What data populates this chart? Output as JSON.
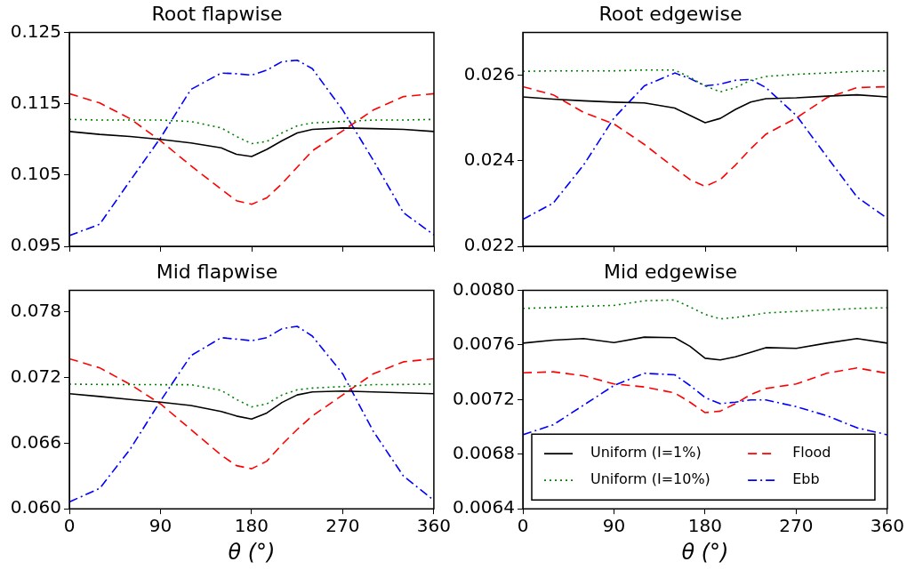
{
  "chart_data": [
    {
      "type": "line",
      "title": "Root flapwise",
      "x": [
        0,
        30,
        60,
        90,
        120,
        150,
        165,
        180,
        195,
        210,
        225,
        240,
        270,
        300,
        330,
        360
      ],
      "xlim": [
        0,
        360
      ],
      "xticks": [
        0,
        90,
        180,
        270,
        360
      ],
      "ylim": [
        0.095,
        0.125
      ],
      "yticks": [
        0.095,
        0.105,
        0.115,
        0.125
      ],
      "tick_labels": "y",
      "marker": "none",
      "series": [
        {
          "color": "#000000",
          "line_style": "solid",
          "values": [
            0.1111,
            0.1107,
            0.1104,
            0.11,
            0.1095,
            0.1088,
            0.1079,
            0.1076,
            0.1086,
            0.1098,
            0.1109,
            0.1114,
            0.1116,
            0.1115,
            0.1114,
            0.1111
          ]
        },
        {
          "color": "#008000",
          "line_style": "dotted",
          "values": [
            0.1128,
            0.1127,
            0.1127,
            0.1127,
            0.1125,
            0.1116,
            0.1104,
            0.1094,
            0.1097,
            0.1109,
            0.1119,
            0.1123,
            0.1125,
            0.1127,
            0.1127,
            0.1128
          ]
        },
        {
          "color": "#ff0000",
          "line_style": "dashed",
          "values": [
            0.1164,
            0.1151,
            0.1129,
            0.1098,
            0.1063,
            0.103,
            0.1014,
            0.1009,
            0.1018,
            0.1038,
            0.1061,
            0.1084,
            0.1112,
            0.1141,
            0.116,
            0.1164
          ]
        },
        {
          "color": "#0000ff",
          "line_style": "dashdot",
          "values": [
            0.0965,
            0.0981,
            0.1042,
            0.1102,
            0.117,
            0.1193,
            0.1192,
            0.119,
            0.1197,
            0.1209,
            0.1211,
            0.1199,
            0.1141,
            0.1071,
            0.0997,
            0.0966
          ]
        }
      ]
    },
    {
      "type": "line",
      "title": "Root edgewise",
      "x": [
        0,
        30,
        60,
        90,
        120,
        150,
        165,
        180,
        195,
        210,
        225,
        240,
        270,
        300,
        330,
        360
      ],
      "xlim": [
        0,
        360
      ],
      "xticks": [
        0,
        90,
        180,
        270,
        360
      ],
      "ylim": [
        0.022,
        0.027
      ],
      "yticks": [
        0.022,
        0.024,
        0.026
      ],
      "tick_labels": "y",
      "marker": "none",
      "series": [
        {
          "color": "#000000",
          "line_style": "solid",
          "values": [
            0.02549,
            0.02544,
            0.0254,
            0.02537,
            0.02535,
            0.02523,
            0.02506,
            0.02489,
            0.02499,
            0.0252,
            0.02537,
            0.02545,
            0.02547,
            0.02551,
            0.02554,
            0.02549
          ]
        },
        {
          "color": "#008000",
          "line_style": "dotted",
          "values": [
            0.02609,
            0.0261,
            0.0261,
            0.0261,
            0.02612,
            0.02612,
            0.02595,
            0.02575,
            0.02561,
            0.02571,
            0.02588,
            0.02597,
            0.02602,
            0.02605,
            0.02609,
            0.0261
          ]
        },
        {
          "color": "#ff0000",
          "line_style": "dashed",
          "values": [
            0.02573,
            0.02554,
            0.02513,
            0.02486,
            0.02438,
            0.02383,
            0.02356,
            0.0234,
            0.02356,
            0.0239,
            0.02428,
            0.02462,
            0.025,
            0.02547,
            0.02571,
            0.02573
          ]
        },
        {
          "color": "#0000ff",
          "line_style": "dashdot",
          "values": [
            0.02263,
            0.02301,
            0.0239,
            0.025,
            0.02575,
            0.02605,
            0.02592,
            0.02575,
            0.02579,
            0.02588,
            0.0259,
            0.02571,
            0.02506,
            0.0241,
            0.02315,
            0.02265
          ]
        }
      ]
    },
    {
      "type": "line",
      "title": "Mid flapwise",
      "xlabel": "θ (°)",
      "x": [
        0,
        30,
        60,
        90,
        120,
        150,
        165,
        180,
        195,
        210,
        225,
        240,
        270,
        300,
        330,
        360
      ],
      "xlim": [
        0,
        360
      ],
      "xticks": [
        0,
        90,
        180,
        270,
        360
      ],
      "ylim": [
        0.06,
        0.08
      ],
      "yticks": [
        {
          "value": 0.06,
          "label": "0.060"
        },
        0.066,
        0.072,
        0.078
      ],
      "marker": "none",
      "series": [
        {
          "color": "#000000",
          "line_style": "solid",
          "values": [
            0.07053,
            0.07028,
            0.07001,
            0.06976,
            0.06946,
            0.06891,
            0.06849,
            0.06822,
            0.06877,
            0.06973,
            0.07042,
            0.0707,
            0.07078,
            0.0707,
            0.07061,
            0.07053
          ]
        },
        {
          "color": "#008000",
          "line_style": "dotted",
          "values": [
            0.07141,
            0.07138,
            0.07137,
            0.07136,
            0.07136,
            0.07084,
            0.07001,
            0.06932,
            0.0696,
            0.07042,
            0.07089,
            0.07105,
            0.07119,
            0.07136,
            0.07138,
            0.07141
          ]
        },
        {
          "color": "#ff0000",
          "line_style": "dashed",
          "values": [
            0.07373,
            0.0729,
            0.07139,
            0.0696,
            0.06726,
            0.06491,
            0.06395,
            0.06367,
            0.06436,
            0.06588,
            0.06726,
            0.0685,
            0.07042,
            0.07235,
            0.07345,
            0.07373
          ]
        },
        {
          "color": "#0000ff",
          "line_style": "dashdot",
          "values": [
            0.06063,
            0.06187,
            0.06545,
            0.06987,
            0.07401,
            0.07566,
            0.07553,
            0.07538,
            0.07566,
            0.07648,
            0.0767,
            0.0758,
            0.07235,
            0.06712,
            0.06299,
            0.06077
          ]
        }
      ]
    },
    {
      "type": "line",
      "title": "Mid edgewise",
      "xlabel": "θ (°)",
      "x": [
        0,
        30,
        60,
        90,
        120,
        150,
        165,
        180,
        195,
        210,
        225,
        240,
        270,
        300,
        330,
        360
      ],
      "xlim": [
        0,
        360
      ],
      "xticks": [
        0,
        90,
        180,
        270,
        360
      ],
      "ylim": [
        0.0064,
        0.008
      ],
      "yticks": [
        0.0064,
        0.0068,
        0.0072,
        0.0076,
        {
          "value": 0.008,
          "label": "0.0080"
        }
      ],
      "marker": "none",
      "legend": "bottom",
      "series": [
        {
          "name": "Uniform (I=1%)",
          "color": "#000000",
          "line_style": "solid",
          "values": [
            0.007613,
            0.007635,
            0.007646,
            0.007617,
            0.007657,
            0.007653,
            0.00759,
            0.007502,
            0.00749,
            0.007513,
            0.007546,
            0.00758,
            0.007575,
            0.007613,
            0.007646,
            0.007613
          ]
        },
        {
          "name": "Uniform (I=10%)",
          "color": "#008000",
          "line_style": "dotted",
          "values": [
            0.007867,
            0.007874,
            0.007883,
            0.007889,
            0.007923,
            0.007929,
            0.007878,
            0.007823,
            0.00779,
            0.007801,
            0.007816,
            0.007834,
            0.007845,
            0.007856,
            0.007867,
            0.007872
          ]
        },
        {
          "name": "Flood",
          "color": "#ff0000",
          "line_style": "dashed",
          "values": [
            0.007396,
            0.007403,
            0.007374,
            0.007314,
            0.007292,
            0.007248,
            0.007181,
            0.007104,
            0.007115,
            0.00717,
            0.007237,
            0.007281,
            0.007314,
            0.007392,
            0.007431,
            0.007392
          ]
        },
        {
          "name": "Ebb",
          "color": "#0000ff",
          "line_style": "dashdot",
          "values": [
            0.006942,
            0.007015,
            0.007159,
            0.007303,
            0.007392,
            0.007381,
            0.007303,
            0.007214,
            0.00717,
            0.007181,
            0.007197,
            0.007197,
            0.007148,
            0.007082,
            0.006993,
            0.006942
          ]
        }
      ]
    }
  ]
}
